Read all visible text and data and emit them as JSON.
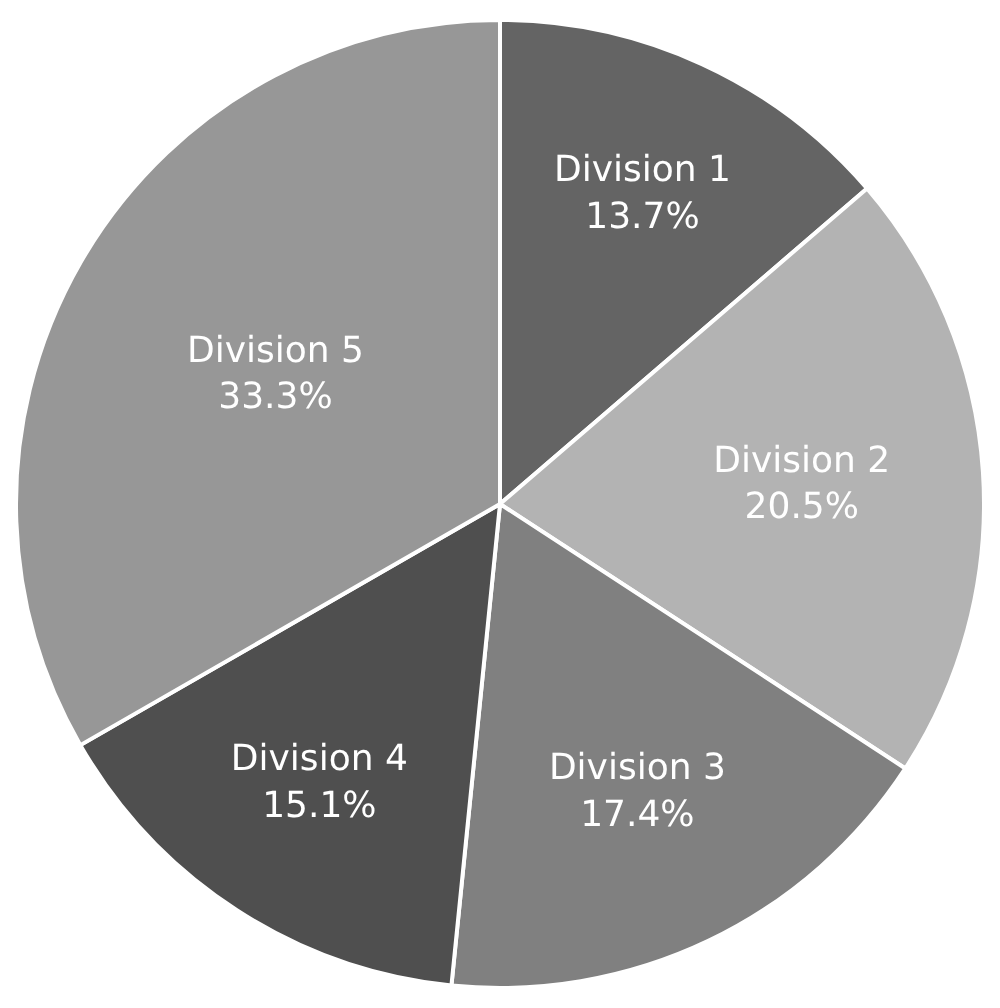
{
  "chart_data": {
    "type": "pie",
    "categories": [
      "Division 1",
      "Division 2",
      "Division 3",
      "Division 4",
      "Division 5"
    ],
    "values": [
      13.7,
      20.5,
      17.4,
      15.1,
      33.3
    ],
    "value_labels": [
      "13.7%",
      "20.5%",
      "17.4%",
      "15.1%",
      "33.3%"
    ],
    "colors": [
      "#646464",
      "#b3b3b3",
      "#808080",
      "#4f4f4f",
      "#979797"
    ],
    "legend": false
  }
}
